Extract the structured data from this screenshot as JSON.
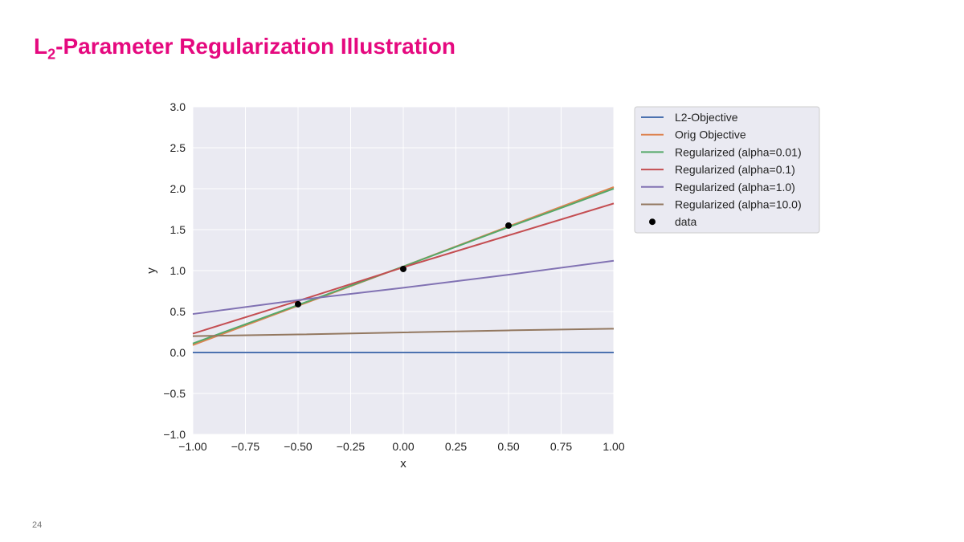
{
  "slide": {
    "title_main": "L",
    "title_sub": "2",
    "title_rest": "-Parameter Regularization Illustration",
    "page_number": "24",
    "title_color": "#e5097f"
  },
  "chart_data": {
    "type": "line",
    "xlabel": "x",
    "ylabel": "y",
    "xlim": [
      -1.0,
      1.0
    ],
    "ylim": [
      -1.0,
      3.0
    ],
    "xticks": [
      "−1.00",
      "−0.75",
      "−0.50",
      "−0.25",
      "0.00",
      "0.25",
      "0.50",
      "0.75",
      "1.00"
    ],
    "yticks": [
      "−1.0",
      "−0.5",
      "0.0",
      "0.5",
      "1.0",
      "1.5",
      "2.0",
      "2.5",
      "3.0"
    ],
    "grid": true,
    "legend_position": "outside-right",
    "x": [
      -1.0,
      -0.5,
      0.0,
      0.5,
      1.0
    ],
    "series": [
      {
        "name": "L2-Objective",
        "color": "#4c72b0",
        "values": [
          0,
          0,
          0,
          0,
          0
        ]
      },
      {
        "name": "Orig Objective",
        "color": "#dd8452",
        "values": [
          0.09,
          0.57,
          1.05,
          1.54,
          2.02
        ]
      },
      {
        "name": "Regularized (alpha=0.01)",
        "color": "#55a868",
        "values": [
          0.11,
          0.58,
          1.05,
          1.53,
          2.0
        ]
      },
      {
        "name": "Regularized (alpha=0.1)",
        "color": "#c44e52",
        "values": [
          0.23,
          0.63,
          1.04,
          1.43,
          1.82
        ]
      },
      {
        "name": "Regularized (alpha=1.0)",
        "color": "#8172b3",
        "values": [
          0.47,
          0.64,
          0.79,
          0.95,
          1.12
        ]
      },
      {
        "name": "Regularized (alpha=10.0)",
        "color": "#937860",
        "values": [
          0.2,
          0.22,
          0.245,
          0.27,
          0.29
        ]
      }
    ],
    "scatter": {
      "name": "data",
      "color": "#000000",
      "x": [
        -0.5,
        0.0,
        0.5
      ],
      "y": [
        0.59,
        1.02,
        1.55
      ]
    }
  }
}
